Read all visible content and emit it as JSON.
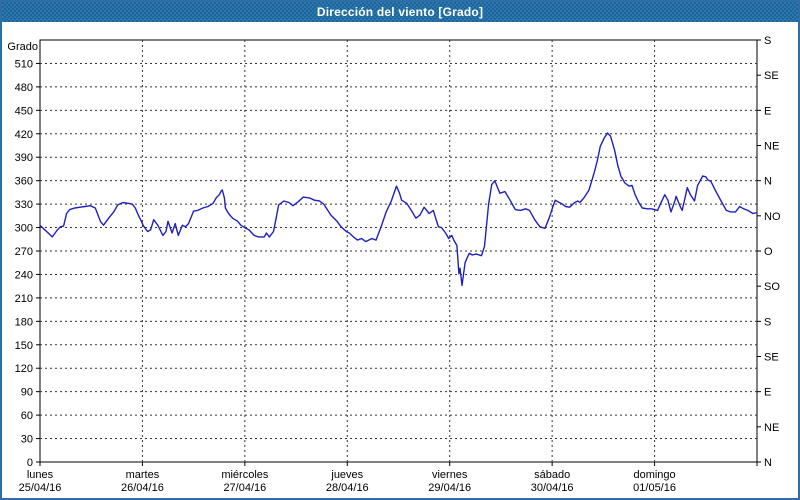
{
  "window": {
    "title": "Dirección del viento [Grado]"
  },
  "colors": {
    "title_bar_bg": "#19679e",
    "title_text": "#ffffff",
    "frame_border": "#2e6da5",
    "plot_bg": "#ffffff",
    "axis": "#000000",
    "grid": "#333333",
    "line": "#2020c0"
  },
  "chart_data": {
    "type": "line",
    "title": "Dirección del viento [Grado]",
    "ylabel": "Grado",
    "ylim": [
      0,
      540
    ],
    "y_tick_step": 30,
    "y_left_ticks": [
      0,
      30,
      60,
      90,
      120,
      150,
      180,
      210,
      240,
      270,
      300,
      330,
      360,
      390,
      420,
      450,
      480,
      510
    ],
    "y_right_axis": {
      "values": [
        0,
        45,
        90,
        135,
        180,
        225,
        270,
        315,
        360,
        405,
        450,
        495,
        540
      ],
      "labels": [
        "N",
        "NE",
        "E",
        "SE",
        "S",
        "SO",
        "O",
        "NO",
        "N",
        "NE",
        "E",
        "SE",
        "S"
      ]
    },
    "x_days": [
      {
        "name": "lunes",
        "date": "25/04/16"
      },
      {
        "name": "martes",
        "date": "26/04/16"
      },
      {
        "name": "miércoles",
        "date": "27/04/16"
      },
      {
        "name": "jueves",
        "date": "28/04/16"
      },
      {
        "name": "viernes",
        "date": "29/04/16"
      },
      {
        "name": "sábado",
        "date": "30/04/16"
      },
      {
        "name": "domingo",
        "date": "01/05/16"
      }
    ],
    "xlim_days": [
      0,
      7
    ],
    "grid": "dashed",
    "legend_position": "none",
    "series": [
      {
        "name": "Dirección del viento",
        "color": "#2020c0",
        "points": [
          [
            0.0,
            303
          ],
          [
            0.03,
            299
          ],
          [
            0.08,
            293
          ],
          [
            0.12,
            288
          ],
          [
            0.17,
            297
          ],
          [
            0.2,
            301
          ],
          [
            0.23,
            302
          ],
          [
            0.26,
            318
          ],
          [
            0.29,
            323
          ],
          [
            0.34,
            325
          ],
          [
            0.39,
            326
          ],
          [
            0.44,
            327
          ],
          [
            0.49,
            328
          ],
          [
            0.54,
            325
          ],
          [
            0.59,
            308
          ],
          [
            0.62,
            303
          ],
          [
            0.67,
            312
          ],
          [
            0.72,
            320
          ],
          [
            0.76,
            329
          ],
          [
            0.81,
            332
          ],
          [
            0.86,
            331
          ],
          [
            0.9,
            330
          ],
          [
            0.93,
            325
          ],
          [
            0.96,
            316
          ],
          [
            0.99,
            308
          ],
          [
            1.01,
            302
          ],
          [
            1.05,
            295
          ],
          [
            1.08,
            297
          ],
          [
            1.11,
            310
          ],
          [
            1.15,
            303
          ],
          [
            1.2,
            290
          ],
          [
            1.23,
            295
          ],
          [
            1.25,
            308
          ],
          [
            1.29,
            293
          ],
          [
            1.32,
            305
          ],
          [
            1.35,
            290
          ],
          [
            1.39,
            303
          ],
          [
            1.42,
            301
          ],
          [
            1.45,
            305
          ],
          [
            1.5,
            321
          ],
          [
            1.54,
            322
          ],
          [
            1.59,
            325
          ],
          [
            1.64,
            327
          ],
          [
            1.69,
            331
          ],
          [
            1.72,
            338
          ],
          [
            1.75,
            342
          ],
          [
            1.77,
            347
          ],
          [
            1.78,
            348
          ],
          [
            1.8,
            338
          ],
          [
            1.81,
            325
          ],
          [
            1.84,
            318
          ],
          [
            1.88,
            312
          ],
          [
            1.93,
            308
          ],
          [
            1.96,
            303
          ],
          [
            2.01,
            299
          ],
          [
            2.04,
            297
          ],
          [
            2.09,
            290
          ],
          [
            2.13,
            288
          ],
          [
            2.19,
            288
          ],
          [
            2.21,
            293
          ],
          [
            2.24,
            288
          ],
          [
            2.28,
            295
          ],
          [
            2.33,
            329
          ],
          [
            2.38,
            334
          ],
          [
            2.43,
            332
          ],
          [
            2.47,
            328
          ],
          [
            2.52,
            333
          ],
          [
            2.57,
            339
          ],
          [
            2.63,
            338
          ],
          [
            2.68,
            335
          ],
          [
            2.73,
            334
          ],
          [
            2.77,
            330
          ],
          [
            2.84,
            316
          ],
          [
            2.9,
            308
          ],
          [
            2.94,
            301
          ],
          [
            2.99,
            295
          ],
          [
            3.02,
            293
          ],
          [
            3.06,
            288
          ],
          [
            3.1,
            284
          ],
          [
            3.14,
            286
          ],
          [
            3.18,
            282
          ],
          [
            3.24,
            286
          ],
          [
            3.28,
            284
          ],
          [
            3.33,
            301
          ],
          [
            3.38,
            320
          ],
          [
            3.43,
            334
          ],
          [
            3.48,
            353
          ],
          [
            3.51,
            344
          ],
          [
            3.53,
            335
          ],
          [
            3.58,
            331
          ],
          [
            3.63,
            321
          ],
          [
            3.67,
            312
          ],
          [
            3.71,
            316
          ],
          [
            3.75,
            326
          ],
          [
            3.8,
            318
          ],
          [
            3.84,
            322
          ],
          [
            3.89,
            301
          ],
          [
            3.92,
            300
          ],
          [
            3.96,
            293
          ],
          [
            3.99,
            286
          ],
          [
            4.02,
            290
          ],
          [
            4.04,
            284
          ],
          [
            4.07,
            277
          ],
          [
            4.09,
            241
          ],
          [
            4.1,
            248
          ],
          [
            4.12,
            226
          ],
          [
            4.15,
            255
          ],
          [
            4.19,
            267
          ],
          [
            4.22,
            265
          ],
          [
            4.26,
            266
          ],
          [
            4.31,
            264
          ],
          [
            4.34,
            276
          ],
          [
            4.38,
            330
          ],
          [
            4.41,
            355
          ],
          [
            4.44,
            360
          ],
          [
            4.47,
            350
          ],
          [
            4.49,
            344
          ],
          [
            4.54,
            346
          ],
          [
            4.59,
            335
          ],
          [
            4.64,
            323
          ],
          [
            4.69,
            322
          ],
          [
            4.74,
            324
          ],
          [
            4.78,
            322
          ],
          [
            4.83,
            310
          ],
          [
            4.88,
            301
          ],
          [
            4.93,
            299
          ],
          [
            4.97,
            312
          ],
          [
            5.01,
            328
          ],
          [
            5.03,
            335
          ],
          [
            5.07,
            332
          ],
          [
            5.1,
            330
          ],
          [
            5.13,
            327
          ],
          [
            5.17,
            326
          ],
          [
            5.22,
            332
          ],
          [
            5.25,
            334
          ],
          [
            5.27,
            332
          ],
          [
            5.31,
            338
          ],
          [
            5.36,
            348
          ],
          [
            5.41,
            370
          ],
          [
            5.44,
            385
          ],
          [
            5.47,
            404
          ],
          [
            5.51,
            415
          ],
          [
            5.54,
            421
          ],
          [
            5.57,
            417
          ],
          [
            5.61,
            399
          ],
          [
            5.64,
            380
          ],
          [
            5.67,
            366
          ],
          [
            5.71,
            357
          ],
          [
            5.75,
            353
          ],
          [
            5.78,
            354
          ],
          [
            5.81,
            342
          ],
          [
            5.85,
            331
          ],
          [
            5.88,
            325
          ],
          [
            5.93,
            324
          ],
          [
            5.97,
            324
          ],
          [
            6.0,
            323
          ],
          [
            6.03,
            322
          ],
          [
            6.06,
            331
          ],
          [
            6.1,
            342
          ],
          [
            6.13,
            335
          ],
          [
            6.16,
            320
          ],
          [
            6.2,
            335
          ],
          [
            6.21,
            340
          ],
          [
            6.25,
            327
          ],
          [
            6.27,
            322
          ],
          [
            6.32,
            351
          ],
          [
            6.35,
            342
          ],
          [
            6.39,
            334
          ],
          [
            6.42,
            354
          ],
          [
            6.47,
            366
          ],
          [
            6.5,
            365
          ],
          [
            6.52,
            361
          ],
          [
            6.55,
            359
          ],
          [
            6.6,
            346
          ],
          [
            6.65,
            334
          ],
          [
            6.7,
            322
          ],
          [
            6.74,
            320
          ],
          [
            6.76,
            320
          ],
          [
            6.79,
            320
          ],
          [
            6.83,
            327
          ],
          [
            6.87,
            324
          ],
          [
            6.91,
            322
          ],
          [
            6.96,
            318
          ],
          [
            7.0,
            319
          ]
        ]
      }
    ]
  }
}
